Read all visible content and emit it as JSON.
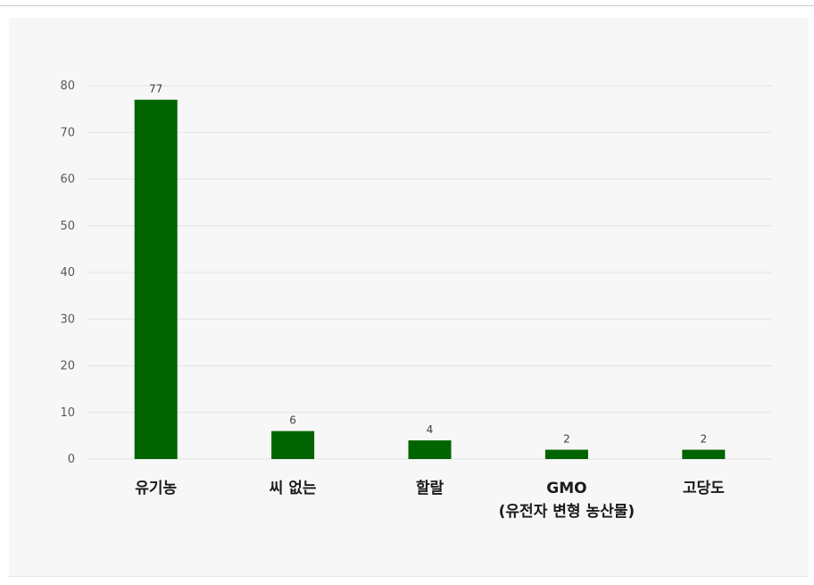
{
  "chart_data": {
    "type": "bar",
    "categories": [
      [
        "유기농"
      ],
      [
        "씨 없는"
      ],
      [
        "할랄"
      ],
      [
        "GMO",
        "(유전자 변형 농산물)"
      ],
      [
        "고당도"
      ]
    ],
    "values": [
      77,
      6,
      4,
      2,
      2
    ],
    "data_labels": [
      "77",
      "6",
      "4",
      "2",
      "2"
    ],
    "yticks": [
      "0",
      "10",
      "20",
      "30",
      "40",
      "50",
      "60",
      "70",
      "80"
    ],
    "ylim": [
      0,
      80
    ],
    "grid": true,
    "bar_color": "#006400"
  }
}
